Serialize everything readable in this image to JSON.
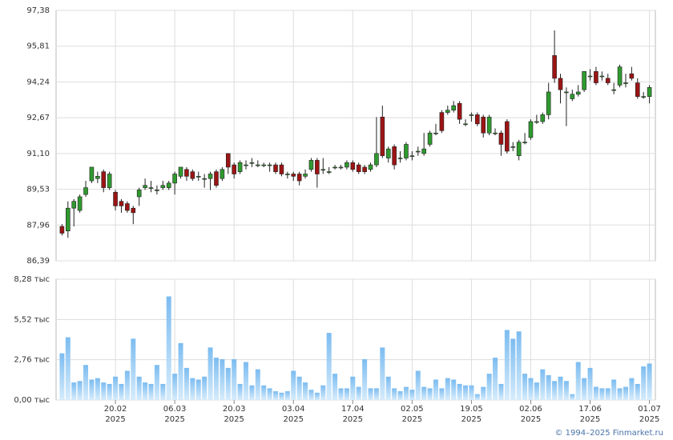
{
  "chart_data": {
    "type": "candlestick",
    "xlim": [
      -1,
      100
    ],
    "xticks": [
      {
        "value": 9,
        "label": "20.02\n2025"
      },
      {
        "value": 19,
        "label": "06.03\n2025"
      },
      {
        "value": 29,
        "label": "20.03\n2025"
      },
      {
        "value": 39,
        "label": "03.04\n2025"
      },
      {
        "value": 49,
        "label": "17.04\n2025"
      },
      {
        "value": 59,
        "label": "02.05\n2025"
      },
      {
        "value": 69,
        "label": "19.05\n2025"
      },
      {
        "value": 79,
        "label": "02.06\n2025"
      },
      {
        "value": 89,
        "label": "17.06\n2025"
      },
      {
        "value": 99,
        "label": "01.07\n2025"
      }
    ],
    "ylim": [
      86.39,
      97.38
    ],
    "yticks": [
      {
        "value": 86.39,
        "label": "86,39"
      },
      {
        "value": 87.96,
        "label": "87,96"
      },
      {
        "value": 89.53,
        "label": "89,53"
      },
      {
        "value": 91.1,
        "label": "91,10"
      },
      {
        "value": 92.67,
        "label": "92,67"
      },
      {
        "value": 94.24,
        "label": "94,24"
      },
      {
        "value": 95.81,
        "label": "95,81"
      },
      {
        "value": 97.38,
        "label": "97,38"
      }
    ],
    "volume_ylim": [
      0,
      8.28
    ],
    "volume_yticks": [
      {
        "value": 0,
        "label": "0,00 тыс"
      },
      {
        "value": 2.76,
        "label": "2,76 тыс"
      },
      {
        "value": 5.52,
        "label": "5,52 тыс"
      },
      {
        "value": 8.28,
        "label": "8,28 тыс"
      }
    ],
    "grid": true,
    "up_color": "#2f9a2f",
    "down_color": "#9c1414",
    "volume_color": "#7cbcf0",
    "open": [
      87.9,
      87.7,
      88.7,
      88.6,
      89.3,
      89.9,
      90.0,
      90.3,
      89.6,
      89.4,
      89.0,
      88.9,
      88.7,
      89.2,
      89.6,
      89.6,
      89.5,
      89.6,
      89.6,
      89.8,
      90.1,
      90.4,
      90.3,
      90.1,
      90.0,
      90.0,
      90.3,
      90.0,
      91.1,
      90.6,
      90.3,
      90.6,
      90.7,
      90.6,
      90.6,
      90.6,
      90.6,
      90.6,
      90.2,
      90.2,
      90.2,
      90.1,
      90.4,
      90.8,
      90.4,
      90.3,
      90.5,
      90.5,
      90.5,
      90.7,
      90.6,
      90.5,
      90.4,
      90.6,
      92.7,
      90.9,
      91.4,
      90.9,
      90.9,
      91.0,
      91.2,
      91.1,
      91.5,
      92.0,
      92.9,
      92.9,
      93.0,
      93.3,
      92.4,
      92.8,
      92.8,
      92.7,
      92.0,
      92.0,
      92.0,
      92.5,
      91.4,
      91.0,
      91.6,
      91.8,
      92.5,
      92.5,
      92.8,
      95.4,
      94.4,
      93.8,
      93.5,
      93.7,
      93.9,
      94.5,
      94.7,
      94.5,
      94.4,
      93.9,
      94.1,
      94.2,
      94.6,
      94.2,
      93.6,
      93.6
    ],
    "high": [
      88.0,
      89.0,
      89.1,
      89.3,
      89.9,
      90.5,
      90.3,
      90.4,
      90.3,
      89.5,
      89.1,
      89.0,
      88.8,
      89.6,
      90.0,
      89.9,
      89.7,
      89.9,
      89.9,
      90.3,
      90.5,
      90.5,
      90.4,
      90.3,
      90.2,
      90.3,
      90.4,
      90.5,
      91.1,
      90.7,
      90.8,
      90.8,
      90.9,
      90.8,
      90.7,
      90.7,
      90.7,
      90.7,
      90.3,
      90.3,
      90.3,
      90.4,
      90.9,
      90.9,
      90.9,
      90.5,
      90.6,
      90.6,
      90.8,
      90.8,
      90.7,
      90.6,
      90.7,
      92.7,
      93.2,
      91.4,
      91.5,
      91.2,
      91.6,
      91.2,
      91.4,
      92.0,
      92.1,
      92.4,
      93.0,
      93.2,
      93.4,
      93.4,
      92.6,
      92.9,
      92.9,
      92.8,
      92.8,
      92.2,
      92.1,
      92.6,
      91.6,
      91.7,
      92.0,
      92.6,
      92.8,
      92.9,
      94.2,
      96.5,
      94.6,
      94.0,
      93.9,
      94.1,
      94.7,
      94.8,
      94.9,
      94.7,
      94.6,
      94.2,
      95.0,
      94.6,
      94.9,
      94.4,
      93.8,
      94.1
    ],
    "low": [
      87.5,
      87.4,
      87.9,
      88.5,
      89.2,
      89.8,
      89.8,
      89.4,
      89.5,
      88.6,
      88.5,
      88.5,
      88.0,
      88.8,
      89.5,
      89.4,
      89.3,
      89.5,
      89.5,
      89.3,
      90.0,
      89.9,
      89.9,
      89.9,
      89.6,
      89.5,
      89.6,
      89.9,
      90.2,
      90.0,
      90.2,
      90.4,
      90.5,
      90.5,
      90.5,
      90.3,
      90.2,
      90.1,
      90.0,
      89.9,
      89.7,
      90.0,
      90.3,
      89.6,
      90.2,
      90.2,
      90.4,
      90.4,
      90.4,
      90.3,
      90.2,
      90.2,
      90.3,
      90.5,
      90.9,
      90.7,
      90.4,
      90.7,
      90.8,
      90.8,
      91.0,
      91.0,
      91.4,
      91.9,
      92.0,
      92.8,
      92.9,
      92.4,
      92.3,
      92.5,
      92.3,
      91.8,
      91.9,
      91.9,
      91.0,
      91.1,
      91.2,
      90.8,
      91.5,
      91.7,
      92.4,
      92.4,
      92.6,
      94.2,
      93.3,
      92.3,
      93.4,
      93.6,
      93.8,
      94.3,
      94.1,
      94.3,
      94.1,
      93.7,
      94.0,
      94.0,
      94.3,
      93.5,
      93.5,
      93.3
    ],
    "close": [
      87.6,
      88.7,
      89.0,
      89.2,
      89.6,
      90.5,
      90.1,
      89.6,
      90.2,
      88.8,
      88.8,
      88.6,
      88.5,
      89.5,
      89.7,
      89.6,
      89.5,
      89.7,
      89.8,
      90.2,
      90.5,
      90.1,
      90.0,
      90.1,
      90.0,
      90.2,
      89.7,
      90.4,
      90.5,
      90.2,
      90.7,
      90.6,
      90.7,
      90.6,
      90.6,
      90.6,
      90.3,
      90.2,
      90.2,
      90.1,
      89.9,
      90.2,
      90.8,
      90.2,
      90.4,
      90.3,
      90.5,
      90.5,
      90.7,
      90.4,
      90.3,
      90.3,
      90.6,
      91.1,
      91.0,
      91.3,
      90.6,
      90.9,
      91.5,
      91.0,
      91.2,
      91.3,
      92.0,
      92.0,
      92.1,
      93.0,
      93.2,
      92.6,
      92.4,
      92.8,
      92.4,
      92.0,
      92.7,
      92.0,
      91.5,
      91.2,
      91.4,
      91.6,
      91.6,
      92.5,
      92.5,
      92.8,
      93.8,
      94.4,
      93.9,
      93.8,
      93.7,
      93.8,
      94.7,
      94.5,
      94.2,
      94.5,
      94.2,
      93.9,
      94.9,
      94.2,
      94.4,
      93.6,
      93.6,
      94.0
    ],
    "volume": [
      3.2,
      4.3,
      1.2,
      1.3,
      2.4,
      1.4,
      1.5,
      1.2,
      1.1,
      1.6,
      1.1,
      2.0,
      4.2,
      1.6,
      1.2,
      1.1,
      2.4,
      1.1,
      7.1,
      1.8,
      3.9,
      2.2,
      1.5,
      1.4,
      1.6,
      3.6,
      2.9,
      2.8,
      2.2,
      2.8,
      1.1,
      2.6,
      1.0,
      2.1,
      1.0,
      0.8,
      0.6,
      0.5,
      0.6,
      2.0,
      1.6,
      1.2,
      0.7,
      0.5,
      1.0,
      4.6,
      1.8,
      0.8,
      0.8,
      1.6,
      0.9,
      2.8,
      0.8,
      0.8,
      3.6,
      1.6,
      0.8,
      0.6,
      0.9,
      0.7,
      2.0,
      0.9,
      0.8,
      1.4,
      0.8,
      1.5,
      1.4,
      1.1,
      1.0,
      1.0,
      0.4,
      0.9,
      1.8,
      2.9,
      1.1,
      4.8,
      4.2,
      4.7,
      1.8,
      1.5,
      1.2,
      2.1,
      1.7,
      1.3,
      1.6,
      1.3,
      0.4,
      2.6,
      1.5,
      2.2,
      0.9,
      0.8,
      0.8,
      1.4,
      0.8,
      0.9,
      1.5,
      1.1,
      2.3,
      2.5
    ],
    "footer": "© 1994–2025 Finmarket.ru"
  }
}
